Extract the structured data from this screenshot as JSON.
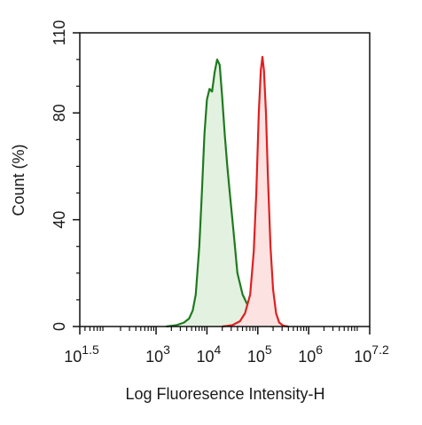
{
  "chart_data": {
    "type": "area",
    "xlabel": "Log Fluoresence Intensity-H",
    "ylabel": "Count  (%)",
    "x_scale": "log10",
    "xlim": [
      1.5,
      7.2
    ],
    "ylim": [
      0,
      110
    ],
    "x_ticks": [
      {
        "base": "10",
        "exp": "1.5",
        "value": 1.5
      },
      {
        "base": "10",
        "exp": "3",
        "value": 3
      },
      {
        "base": "10",
        "exp": "4",
        "value": 4
      },
      {
        "base": "10",
        "exp": "5",
        "value": 5
      },
      {
        "base": "10",
        "exp": "6",
        "value": 6
      },
      {
        "base": "10",
        "exp": "7.2",
        "value": 7.2
      }
    ],
    "y_ticks": [
      {
        "label": "0",
        "value": 0
      },
      {
        "label": "40",
        "value": 40
      },
      {
        "label": "80",
        "value": 80
      },
      {
        "label": "110",
        "value": 110
      }
    ],
    "grid": false,
    "series": [
      {
        "color": "#1f7a1f",
        "fill": "#e3f1e0",
        "points": [
          [
            3.2,
            0
          ],
          [
            3.4,
            0.5
          ],
          [
            3.55,
            1.5
          ],
          [
            3.65,
            3
          ],
          [
            3.72,
            6
          ],
          [
            3.78,
            12
          ],
          [
            3.85,
            30
          ],
          [
            3.9,
            50
          ],
          [
            3.95,
            72
          ],
          [
            4.0,
            85
          ],
          [
            4.05,
            89
          ],
          [
            4.1,
            88
          ],
          [
            4.15,
            95
          ],
          [
            4.2,
            100
          ],
          [
            4.25,
            98
          ],
          [
            4.3,
            86
          ],
          [
            4.35,
            72
          ],
          [
            4.4,
            60
          ],
          [
            4.45,
            50
          ],
          [
            4.52,
            36
          ],
          [
            4.6,
            20
          ],
          [
            4.7,
            12
          ],
          [
            4.8,
            8
          ],
          [
            4.9,
            5
          ],
          [
            5.0,
            2.5
          ],
          [
            5.1,
            1
          ],
          [
            5.2,
            0.3
          ],
          [
            5.3,
            0
          ]
        ]
      },
      {
        "color": "#e02020",
        "fill": "#fde2e2",
        "points": [
          [
            4.3,
            0
          ],
          [
            4.5,
            0.5
          ],
          [
            4.65,
            2
          ],
          [
            4.75,
            5
          ],
          [
            4.85,
            12
          ],
          [
            4.92,
            28
          ],
          [
            4.97,
            50
          ],
          [
            5.02,
            80
          ],
          [
            5.06,
            96
          ],
          [
            5.09,
            101
          ],
          [
            5.12,
            96
          ],
          [
            5.16,
            80
          ],
          [
            5.2,
            55
          ],
          [
            5.25,
            30
          ],
          [
            5.3,
            14
          ],
          [
            5.36,
            5
          ],
          [
            5.42,
            1.5
          ],
          [
            5.5,
            0.3
          ],
          [
            5.6,
            0
          ]
        ]
      }
    ]
  }
}
